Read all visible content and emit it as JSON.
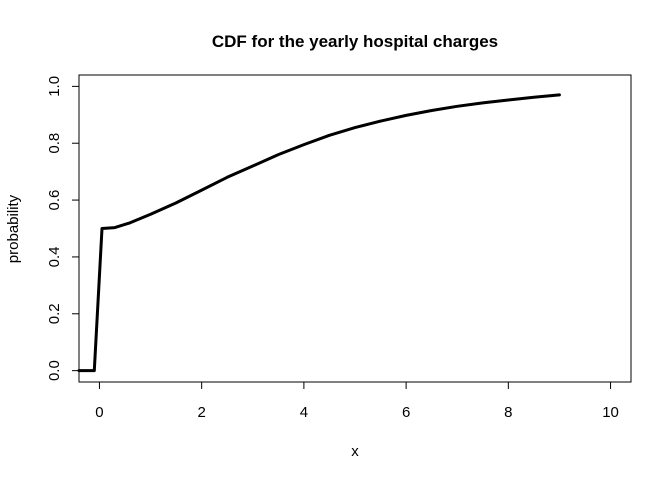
{
  "chart_data": {
    "type": "line",
    "title": "CDF for the yearly hospital charges",
    "xlabel": "x",
    "ylabel": "probability",
    "xlim": [
      -0.4,
      10.4
    ],
    "ylim": [
      -0.04,
      1.04
    ],
    "xticks": [
      0,
      2,
      4,
      6,
      8,
      10
    ],
    "xtick_labels": [
      "0",
      "2",
      "4",
      "6",
      "8",
      "10"
    ],
    "yticks": [
      0,
      0.2,
      0.4,
      0.6,
      0.8,
      1.0
    ],
    "ytick_labels": [
      "0.0",
      "0.2",
      "0.4",
      "0.6",
      "0.8",
      "1.0"
    ],
    "grid": false,
    "series": [
      {
        "color": "#000000",
        "x": [
          -0.4,
          -0.1,
          0.05,
          0.3,
          0.6,
          1.0,
          1.5,
          2.0,
          2.5,
          3.0,
          3.5,
          4.0,
          4.5,
          5.0,
          5.5,
          6.0,
          6.5,
          7.0,
          7.5,
          8.0,
          8.5,
          9.0
        ],
        "y": [
          0.0,
          0.0,
          0.5,
          0.503,
          0.52,
          0.55,
          0.59,
          0.635,
          0.68,
          0.72,
          0.76,
          0.795,
          0.828,
          0.855,
          0.878,
          0.898,
          0.915,
          0.93,
          0.942,
          0.952,
          0.962,
          0.97
        ]
      }
    ]
  }
}
